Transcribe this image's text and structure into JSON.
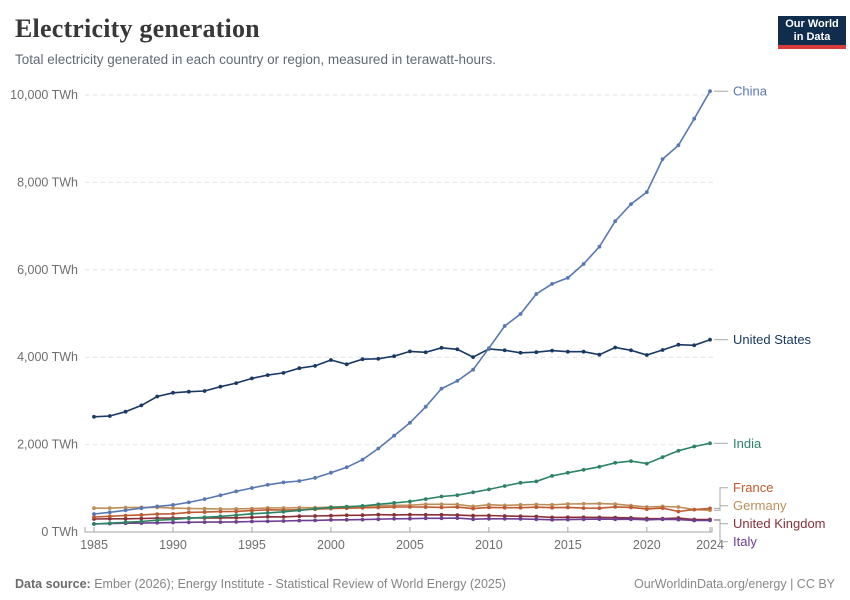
{
  "header": {
    "title": "Electricity generation",
    "subtitle": "Total electricity generated in each country or region, measured in terawatt-hours.",
    "logo_line1": "Our World",
    "logo_line2": "in Data",
    "logo_bg": "#102d4e",
    "logo_accent": "#d93a3a"
  },
  "footer": {
    "source_label": "Data source:",
    "source_text": " Ember (2026); Energy Institute - Statistical Review of World Energy (2025)",
    "url": "OurWorldinData.org/energy",
    "divider": " | ",
    "license": "CC BY"
  },
  "chart_data": {
    "type": "line",
    "title": "Electricity generation",
    "unit": "TWh",
    "xlabel": "",
    "ylabel": "",
    "ylim": [
      0,
      10000
    ],
    "grid": true,
    "legend_position": "right-edge-labels",
    "x": [
      1985,
      1986,
      1987,
      1988,
      1989,
      1990,
      1991,
      1992,
      1993,
      1994,
      1995,
      1996,
      1997,
      1998,
      1999,
      2000,
      2001,
      2002,
      2003,
      2004,
      2005,
      2006,
      2007,
      2008,
      2009,
      2010,
      2011,
      2012,
      2013,
      2014,
      2015,
      2016,
      2017,
      2018,
      2019,
      2020,
      2021,
      2022,
      2023,
      2024
    ],
    "x_ticks": [
      {
        "year": 1985,
        "label": "1985"
      },
      {
        "year": 1990,
        "label": "1990"
      },
      {
        "year": 1995,
        "label": "1995"
      },
      {
        "year": 2000,
        "label": "2000"
      },
      {
        "year": 2005,
        "label": "2005"
      },
      {
        "year": 2010,
        "label": "2010"
      },
      {
        "year": 2015,
        "label": "2015"
      },
      {
        "year": 2020,
        "label": "2020"
      },
      {
        "year": 2024,
        "label": "2024"
      }
    ],
    "y_ticks": [
      {
        "value": 0,
        "label": "0 TWh"
      },
      {
        "value": 2000,
        "label": "2,000 TWh"
      },
      {
        "value": 4000,
        "label": "4,000 TWh"
      },
      {
        "value": 6000,
        "label": "6,000 TWh"
      },
      {
        "value": 8000,
        "label": "8,000 TWh"
      },
      {
        "value": 10000,
        "label": "10,000 TWh"
      }
    ],
    "series": [
      {
        "name": "China",
        "color": "#5878b3",
        "values": [
          411,
          450,
          497,
          545,
          585,
          621,
          678,
          754,
          839,
          928,
          1008,
          1081,
          1136,
          1167,
          1239,
          1356,
          1481,
          1654,
          1911,
          2203,
          2500,
          2866,
          3282,
          3457,
          3715,
          4207,
          4713,
          4988,
          5447,
          5678,
          5815,
          6133,
          6529,
          7111,
          7503,
          7779,
          8534,
          8849,
          9456,
          10087
        ]
      },
      {
        "name": "United States",
        "color": "#1a3864",
        "values": [
          2637,
          2654,
          2754,
          2896,
          3101,
          3185,
          3211,
          3226,
          3324,
          3408,
          3515,
          3590,
          3640,
          3749,
          3800,
          3936,
          3837,
          3954,
          3963,
          4024,
          4132,
          4113,
          4215,
          4180,
          4002,
          4190,
          4159,
          4100,
          4114,
          4151,
          4126,
          4126,
          4058,
          4222,
          4158,
          4050,
          4165,
          4287,
          4272,
          4401
        ]
      },
      {
        "name": "India",
        "color": "#2c8465",
        "values": [
          183,
          202,
          221,
          241,
          269,
          289,
          315,
          336,
          356,
          385,
          417,
          436,
          463,
          494,
          532,
          561,
          576,
          597,
          633,
          665,
          697,
          752,
          813,
          843,
          908,
          974,
          1053,
          1126,
          1159,
          1283,
          1354,
          1423,
          1493,
          1583,
          1623,
          1565,
          1714,
          1858,
          1957,
          2030
        ]
      },
      {
        "name": "France",
        "color": "#bf5b32",
        "values": [
          344,
          360,
          378,
          392,
          409,
          417,
          448,
          455,
          467,
          471,
          489,
          507,
          500,
          507,
          521,
          535,
          545,
          553,
          561,
          572,
          571,
          569,
          564,
          570,
          536,
          564,
          556,
          557,
          567,
          556,
          562,
          546,
          545,
          574,
          562,
          525,
          548,
          468,
          512,
          540
        ]
      },
      {
        "name": "Germany",
        "color": "#bc8e5a",
        "values": [
          544,
          547,
          558,
          562,
          562,
          547,
          537,
          534,
          527,
          529,
          535,
          551,
          550,
          557,
          556,
          572,
          581,
          583,
          599,
          612,
          613,
          633,
          634,
          631,
          586,
          625,
          609,
          623,
          629,
          622,
          641,
          645,
          649,
          638,
          604,
          572,
          585,
          571,
          513,
          497
        ]
      },
      {
        "name": "United Kingdom",
        "color": "#883039",
        "values": [
          298,
          302,
          303,
          309,
          315,
          320,
          323,
          321,
          323,
          326,
          334,
          347,
          345,
          362,
          365,
          374,
          382,
          384,
          395,
          391,
          395,
          394,
          393,
          386,
          373,
          378,
          365,
          360,
          354,
          335,
          337,
          337,
          335,
          330,
          323,
          310,
          305,
          320,
          285,
          285
        ]
      },
      {
        "name": "Italy",
        "color": "#6d3e91",
        "values": [
          185,
          192,
          201,
          204,
          211,
          217,
          222,
          226,
          226,
          232,
          241,
          244,
          251,
          260,
          266,
          277,
          279,
          284,
          294,
          303,
          304,
          314,
          314,
          319,
          293,
          302,
          303,
          299,
          290,
          280,
          283,
          290,
          296,
          290,
          294,
          280,
          290,
          284,
          264,
          266
        ]
      }
    ]
  }
}
